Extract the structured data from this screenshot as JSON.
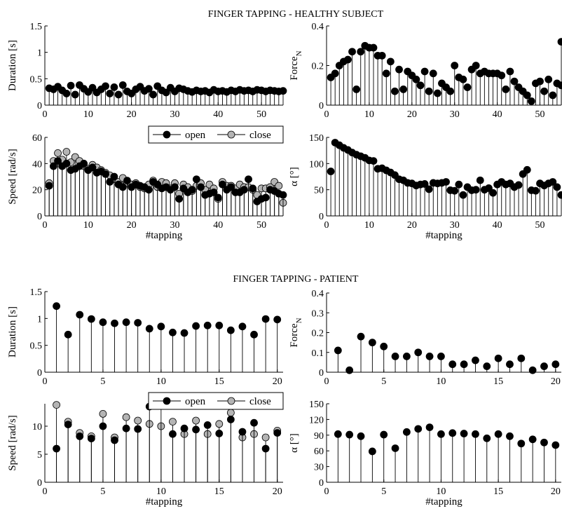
{
  "sections": [
    {
      "title": "FINGER TAPPING - HEALTHY SUBJECT"
    },
    {
      "title": "FINGER TAPPING - PATIENT"
    }
  ],
  "legend": {
    "open": "open",
    "close": "close"
  },
  "colors": {
    "open": "#000000",
    "close": "#b4b4b4",
    "stem": "#000000"
  },
  "chart_data": [
    {
      "id": "healthy-duration",
      "type": "stem",
      "title": "",
      "xlabel": "",
      "ylabel": "Duration [s]",
      "xlim": [
        0,
        55
      ],
      "ylim": [
        0,
        1.5
      ],
      "xticks": [
        0,
        10,
        20,
        30,
        40,
        50
      ],
      "yticks": [
        0,
        0.5,
        1,
        1.5
      ],
      "series": [
        {
          "key": "open",
          "values": [
            0.32,
            0.3,
            0.35,
            0.28,
            0.22,
            0.37,
            0.2,
            0.38,
            0.31,
            0.25,
            0.33,
            0.24,
            0.3,
            0.36,
            0.22,
            0.34,
            0.2,
            0.38,
            0.26,
            0.22,
            0.3,
            0.35,
            0.27,
            0.31,
            0.2,
            0.36,
            0.28,
            0.24,
            0.33,
            0.26,
            0.32,
            0.3,
            0.27,
            0.25,
            0.28,
            0.26,
            0.27,
            0.24,
            0.29,
            0.26,
            0.27,
            0.25,
            0.28,
            0.26,
            0.29,
            0.27,
            0.28,
            0.26,
            0.29,
            0.28,
            0.26,
            0.28,
            0.27,
            0.26,
            0.27
          ]
        }
      ]
    },
    {
      "id": "healthy-force",
      "type": "stem",
      "title": "",
      "xlabel": "",
      "ylabel": "Force",
      "ylabel_sub": "N",
      "xlim": [
        0,
        55
      ],
      "ylim": [
        0,
        0.4
      ],
      "xticks": [
        0,
        10,
        20,
        30,
        40,
        50
      ],
      "yticks": [
        0,
        0.2,
        0.4
      ],
      "series": [
        {
          "key": "open",
          "values": [
            0.14,
            0.16,
            0.2,
            0.22,
            0.23,
            0.27,
            0.08,
            0.27,
            0.3,
            0.29,
            0.29,
            0.25,
            0.25,
            0.16,
            0.22,
            0.07,
            0.18,
            0.08,
            0.17,
            0.15,
            0.13,
            0.1,
            0.17,
            0.07,
            0.16,
            0.06,
            0.11,
            0.09,
            0.07,
            0.2,
            0.14,
            0.13,
            0.09,
            0.18,
            0.2,
            0.16,
            0.17,
            0.16,
            0.16,
            0.16,
            0.15,
            0.08,
            0.17,
            0.12,
            0.09,
            0.07,
            0.05,
            0.02,
            0.11,
            0.12,
            0.07,
            0.13,
            0.05,
            0.11,
            0.1
          ]
        },
        {
          "key": "open",
          "values_at": [
            [
              55,
              0.32
            ]
          ]
        }
      ]
    },
    {
      "id": "healthy-speed",
      "type": "stem",
      "title": "",
      "xlabel": "#tapping",
      "ylabel": "Speed [rad/s]",
      "xlim": [
        0,
        55
      ],
      "ylim": [
        0,
        60
      ],
      "xticks": [
        0,
        10,
        20,
        30,
        40,
        50
      ],
      "yticks": [
        0,
        20,
        40,
        60
      ],
      "legend_position": "top-right",
      "series": [
        {
          "key": "open",
          "values": [
            23,
            38,
            42,
            38,
            40,
            35,
            36,
            38,
            40,
            35,
            37,
            33,
            34,
            32,
            26,
            30,
            24,
            22,
            27,
            22,
            24,
            23,
            22,
            20,
            26,
            24,
            21,
            22,
            20,
            22,
            13,
            21,
            18,
            20,
            28,
            22,
            16,
            17,
            18,
            14,
            24,
            20,
            22,
            18,
            18,
            20,
            28,
            21,
            11,
            13,
            14,
            20,
            19,
            17,
            16
          ]
        },
        {
          "key": "close",
          "values": [
            25,
            42,
            48,
            43,
            49,
            41,
            45,
            42,
            38,
            36,
            39,
            37,
            35,
            33,
            31,
            28,
            26,
            29,
            25,
            24,
            25,
            22,
            21,
            24,
            27,
            22,
            26,
            25,
            21,
            25,
            17,
            24,
            22,
            19,
            23,
            25,
            20,
            24,
            21,
            13,
            26,
            23,
            23,
            21,
            24,
            22,
            22,
            20,
            16,
            21,
            21,
            22,
            26,
            23,
            10
          ]
        }
      ]
    },
    {
      "id": "healthy-alpha",
      "type": "stem",
      "title": "",
      "xlabel": "#tapping",
      "ylabel": "α [°]",
      "xlim": [
        0,
        55
      ],
      "ylim": [
        0,
        150
      ],
      "xticks": [
        0,
        10,
        20,
        30,
        40,
        50
      ],
      "yticks": [
        0,
        50,
        100,
        150
      ],
      "series": [
        {
          "key": "open",
          "values": [
            85,
            140,
            135,
            130,
            126,
            121,
            117,
            114,
            111,
            106,
            105,
            90,
            91,
            87,
            83,
            78,
            70,
            68,
            63,
            62,
            58,
            60,
            61,
            51,
            63,
            62,
            63,
            65,
            49,
            48,
            60,
            40,
            55,
            49,
            50,
            68,
            50,
            53,
            44,
            60,
            65,
            60,
            62,
            55,
            59,
            80,
            88,
            49,
            48,
            62,
            58,
            62,
            65,
            55,
            40
          ]
        }
      ]
    },
    {
      "id": "patient-duration",
      "type": "stem",
      "title": "",
      "xlabel": "",
      "ylabel": "Duration [s]",
      "xlim": [
        0,
        20.5
      ],
      "ylim": [
        0,
        1.5
      ],
      "xticks": [
        0,
        5,
        10,
        15,
        20
      ],
      "yticks": [
        0,
        0.5,
        1,
        1.5
      ],
      "series": [
        {
          "key": "open",
          "values": [
            1.23,
            0.7,
            1.07,
            0.99,
            0.93,
            0.91,
            0.93,
            0.92,
            0.81,
            0.85,
            0.74,
            0.73,
            0.86,
            0.87,
            0.87,
            0.78,
            0.85,
            0.7,
            0.99,
            0.98
          ]
        }
      ]
    },
    {
      "id": "patient-force",
      "type": "stem",
      "title": "",
      "xlabel": "",
      "ylabel": "Force",
      "ylabel_sub": "N",
      "xlim": [
        0,
        20.5
      ],
      "ylim": [
        0,
        0.4
      ],
      "xticks": [
        0,
        5,
        10,
        15,
        20
      ],
      "yticks": [
        0,
        0.1,
        0.2,
        0.3,
        0.4
      ],
      "series": [
        {
          "key": "open",
          "values": [
            0.11,
            0.01,
            0.18,
            0.15,
            0.13,
            0.08,
            0.08,
            0.1,
            0.08,
            0.08,
            0.04,
            0.04,
            0.06,
            0.03,
            0.07,
            0.04,
            0.07,
            0.01,
            0.03,
            0.04
          ]
        }
      ]
    },
    {
      "id": "patient-speed",
      "type": "stem",
      "title": "",
      "xlabel": "#tapping",
      "ylabel": "Speed [rad/s]",
      "xlim": [
        0,
        20.5
      ],
      "ylim": [
        0,
        14
      ],
      "xticks": [
        0,
        5,
        10,
        15,
        20
      ],
      "yticks": [
        0,
        5,
        10
      ],
      "legend_position": "top-right",
      "series": [
        {
          "key": "open",
          "values": [
            6.0,
            10.3,
            8.2,
            7.8,
            10.0,
            7.5,
            9.6,
            9.5,
            13.5,
            14.0,
            8.6,
            9.6,
            9.4,
            10.2,
            8.7,
            11.2,
            9.0,
            10.6,
            6.0,
            8.8
          ]
        },
        {
          "key": "close",
          "values": [
            13.8,
            10.8,
            8.8,
            8.2,
            12.2,
            8.0,
            11.6,
            11.0,
            10.4,
            10.0,
            10.8,
            8.6,
            11.0,
            8.6,
            10.4,
            12.4,
            8.0,
            8.6,
            8.0,
            9.2
          ]
        }
      ]
    },
    {
      "id": "patient-alpha",
      "type": "stem",
      "title": "",
      "xlabel": "#tapping",
      "ylabel": "α [°]",
      "xlim": [
        0,
        20.5
      ],
      "ylim": [
        0,
        150
      ],
      "xticks": [
        0,
        5,
        10,
        15,
        20
      ],
      "yticks": [
        0,
        30,
        60,
        90,
        120,
        150
      ],
      "series": [
        {
          "key": "open",
          "values": [
            92,
            91,
            88,
            59,
            91,
            65,
            96,
            102,
            105,
            92,
            94,
            93,
            92,
            84,
            92,
            88,
            74,
            82,
            76,
            71
          ]
        }
      ]
    }
  ]
}
